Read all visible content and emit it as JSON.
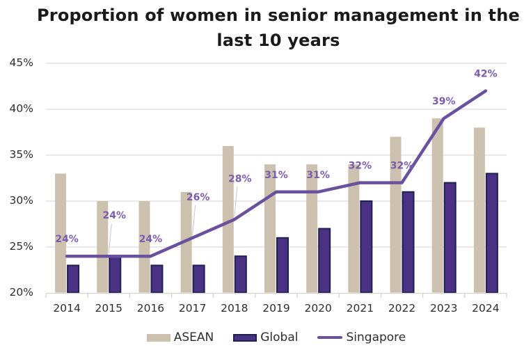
{
  "chart_data": {
    "type": "combo-bar-line",
    "title": "Proportion of women in senior management in the last 10 years",
    "title_lines": [
      "Proportion of women in senior management in the",
      "last 10 years"
    ],
    "categories": [
      "2014",
      "2015",
      "2016",
      "2017",
      "2018",
      "2019",
      "2020",
      "2021",
      "2022",
      "2023",
      "2024"
    ],
    "series": [
      {
        "name": "ASEAN",
        "kind": "bar",
        "color": "#cbc1ae",
        "values": [
          33,
          30,
          30,
          31,
          36,
          34,
          34,
          34,
          37,
          39,
          38
        ]
      },
      {
        "name": "Global",
        "kind": "bar",
        "color": "#4a3183",
        "border_color": "#1e2250",
        "values": [
          23,
          24,
          23,
          23,
          24,
          26,
          27,
          30,
          31,
          32,
          33
        ]
      },
      {
        "name": "Singapore",
        "kind": "line",
        "color": "#6a519e",
        "values": [
          24,
          24,
          24,
          26,
          28,
          31,
          31,
          32,
          32,
          39,
          42
        ],
        "point_labels": [
          "24%",
          "24%",
          "24%",
          "26%",
          "28%",
          "31%",
          "31%",
          "32%",
          "32%",
          "39%",
          "42%"
        ],
        "label_color": "#7a5cad",
        "leader_categories": [
          "2015",
          "2017",
          "2018"
        ],
        "leader_color": "#c6c6c6"
      }
    ],
    "y_axis": {
      "min": 20,
      "max": 45,
      "step": 5,
      "tick_labels": [
        "20%",
        "25%",
        "30%",
        "35%",
        "40%",
        "45%"
      ]
    },
    "x_axis": {
      "tick_labels": [
        "2014",
        "2015",
        "2016",
        "2017",
        "2018",
        "2019",
        "2020",
        "2021",
        "2022",
        "2023",
        "2024"
      ]
    },
    "grid": true,
    "grid_color": "#dcdcdc",
    "axis_color": "#d5d2cc",
    "text_color": "#2d2d2d",
    "legend": {
      "position": "bottom",
      "items": [
        "ASEAN",
        "Global",
        "Singapore"
      ]
    }
  }
}
